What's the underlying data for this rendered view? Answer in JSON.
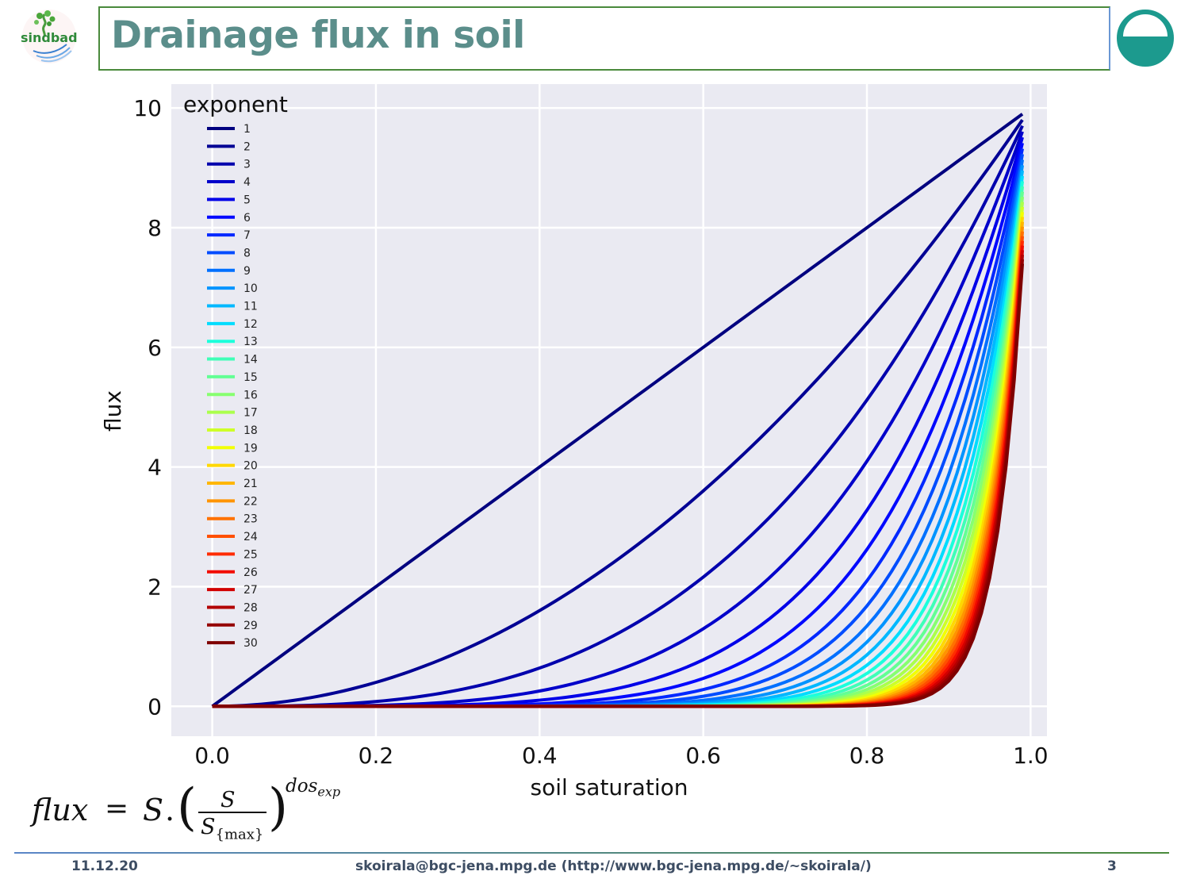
{
  "slide": {
    "title": "Drainage flux in soil",
    "left_logo": "sindbad",
    "right_logo_icon": "half-filled-circle-logo-icon",
    "accent_color": "#5b8e8b"
  },
  "formula": {
    "lhs": "flux",
    "eq": "=",
    "s": "S",
    "dot": ".",
    "paren_left": "(",
    "paren_right": ")",
    "numerator": "S",
    "denominator": "S",
    "denominator_sub": "{max}",
    "exponent": "dos",
    "exponent_sub": "exp"
  },
  "footer": {
    "date": "11.12.20",
    "contact": "skoirala@bgc-jena.mpg.de (http://www.bgc-jena.mpg.de/~skoirala/)",
    "page": "3"
  },
  "chart_data": {
    "type": "line",
    "xlabel": "soil saturation",
    "ylabel": "flux",
    "xlim": [
      -0.05,
      1.02
    ],
    "ylim": [
      -0.5,
      10.4
    ],
    "xticks": [
      "0.0",
      "0.2",
      "0.4",
      "0.6",
      "0.8",
      "1.0"
    ],
    "xtick_values": [
      0.0,
      0.2,
      0.4,
      0.6,
      0.8,
      1.0
    ],
    "yticks": [
      "0",
      "2",
      "4",
      "6",
      "8",
      "10"
    ],
    "ytick_values": [
      0,
      2,
      4,
      6,
      8,
      10
    ],
    "grid": true,
    "background": "#eaeaf2",
    "colormap": "jet",
    "legend_title": "exponent",
    "legend_position": "upper-left",
    "soil_max": 10,
    "x_end": 0.99,
    "x_step": 0.01,
    "series": [
      {
        "name": "1",
        "exponent": 1,
        "color": "#00007f"
      },
      {
        "name": "2",
        "exponent": 2,
        "color": "#000094"
      },
      {
        "name": "3",
        "exponent": 3,
        "color": "#0000ad"
      },
      {
        "name": "4",
        "exponent": 4,
        "color": "#0000ca"
      },
      {
        "name": "5",
        "exponent": 5,
        "color": "#0000e8"
      },
      {
        "name": "6",
        "exponent": 6,
        "color": "#0008ff"
      },
      {
        "name": "7",
        "exponent": 7,
        "color": "#0028ff"
      },
      {
        "name": "8",
        "exponent": 8,
        "color": "#004cff"
      },
      {
        "name": "9",
        "exponent": 9,
        "color": "#0070ff"
      },
      {
        "name": "10",
        "exponent": 10,
        "color": "#0094ff"
      },
      {
        "name": "11",
        "exponent": 11,
        "color": "#00b8ff"
      },
      {
        "name": "12",
        "exponent": 12,
        "color": "#00dcfe"
      },
      {
        "name": "13",
        "exponent": 13,
        "color": "#1cffdb"
      },
      {
        "name": "14",
        "exponent": 14,
        "color": "#3fffb7"
      },
      {
        "name": "15",
        "exponent": 15,
        "color": "#63ff94"
      },
      {
        "name": "16",
        "exponent": 16,
        "color": "#87ff70"
      },
      {
        "name": "17",
        "exponent": 17,
        "color": "#abff4c"
      },
      {
        "name": "18",
        "exponent": 18,
        "color": "#ceff28"
      },
      {
        "name": "19",
        "exponent": 19,
        "color": "#f2ff05"
      },
      {
        "name": "20",
        "exponent": 20,
        "color": "#ffd800"
      },
      {
        "name": "21",
        "exponent": 21,
        "color": "#ffb600"
      },
      {
        "name": "22",
        "exponent": 22,
        "color": "#ff9400"
      },
      {
        "name": "23",
        "exponent": 23,
        "color": "#ff7100"
      },
      {
        "name": "24",
        "exponent": 24,
        "color": "#ff4f00"
      },
      {
        "name": "25",
        "exponent": 25,
        "color": "#ff2c00"
      },
      {
        "name": "26",
        "exponent": 26,
        "color": "#f20c00"
      },
      {
        "name": "27",
        "exponent": 27,
        "color": "#d20000"
      },
      {
        "name": "28",
        "exponent": 28,
        "color": "#b20000"
      },
      {
        "name": "29",
        "exponent": 29,
        "color": "#950000"
      },
      {
        "name": "30",
        "exponent": 30,
        "color": "#7f0000"
      }
    ]
  }
}
